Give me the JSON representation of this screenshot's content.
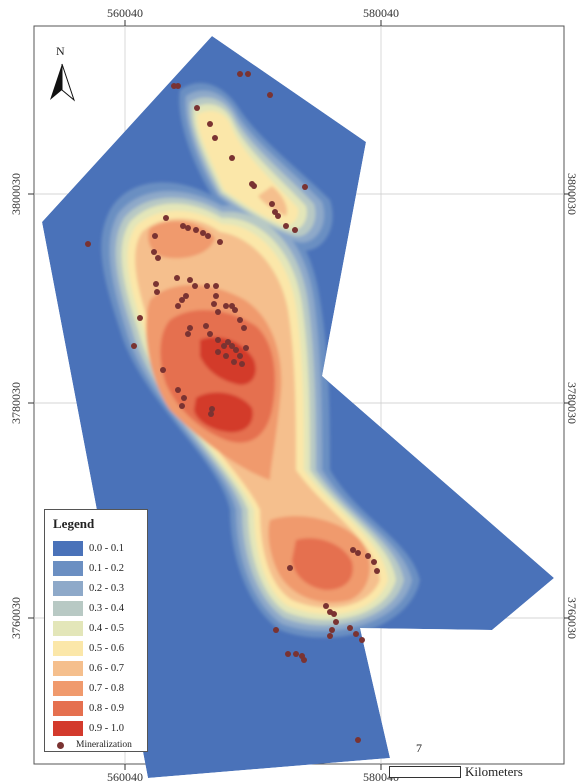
{
  "axes": {
    "top_x": [
      "560040",
      "580040"
    ],
    "bottom_x": [
      "560040",
      "580040"
    ],
    "left_y": [
      "3800030",
      "3780030",
      "3760030"
    ],
    "right_y": [
      "3800030",
      "3780030",
      "3760030"
    ]
  },
  "north": {
    "label": "N"
  },
  "legend": {
    "title": "Legend",
    "classes": [
      {
        "label": "0.0 - 0.1",
        "color": "#4a72b9"
      },
      {
        "label": "0.1 - 0.2",
        "color": "#6b8fc2"
      },
      {
        "label": "0.2 - 0.3",
        "color": "#8ea9c9"
      },
      {
        "label": "0.3 - 0.4",
        "color": "#b8c9c4"
      },
      {
        "label": "0.4 - 0.5",
        "color": "#e3e6b9"
      },
      {
        "label": "0.5 - 0.6",
        "color": "#fbe7a9"
      },
      {
        "label": "0.6 - 0.7",
        "color": "#f5bf8d"
      },
      {
        "label": "0.7 - 0.8",
        "color": "#f09a6d"
      },
      {
        "label": "0.8 - 0.9",
        "color": "#e5704f"
      },
      {
        "label": "0.9 - 1.0",
        "color": "#d33a2c"
      }
    ],
    "point_label": "Mineralization",
    "point_color": "#7a3332"
  },
  "scale_bar": {
    "value": "7",
    "unit": "Kilometers"
  }
}
